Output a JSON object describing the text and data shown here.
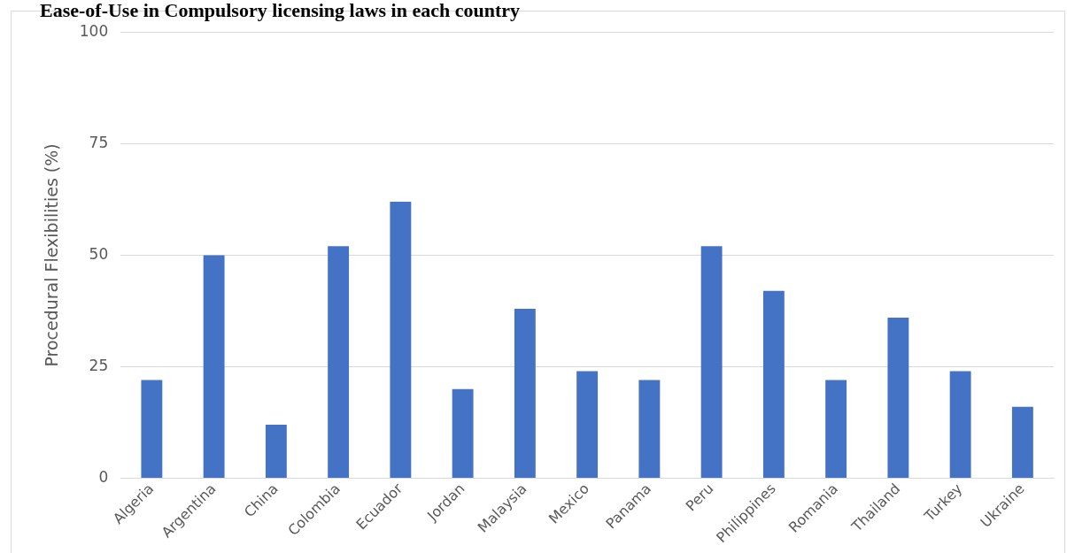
{
  "chart_data": {
    "type": "bar",
    "title": "Ease-of-Use in Compulsory licensing laws in each country",
    "ylabel": "Procedural Flexibilities (%)",
    "categories": [
      "Algeria",
      "Argentina",
      "China",
      "Colombia",
      "Ecuador",
      "Jordan",
      "Malaysia",
      "Mexico",
      "Panama",
      "Peru",
      "Philippines",
      "Romania",
      "Thailand",
      "Turkey",
      "Ukraine"
    ],
    "values": [
      22,
      50,
      12,
      52,
      62,
      20,
      38,
      24,
      22,
      52,
      42,
      22,
      36,
      24,
      16
    ],
    "color": "#4472c4",
    "ylim": [
      0,
      100
    ],
    "yticks": [
      0,
      25,
      50,
      75,
      100
    ],
    "grid": "y",
    "legend": false
  }
}
